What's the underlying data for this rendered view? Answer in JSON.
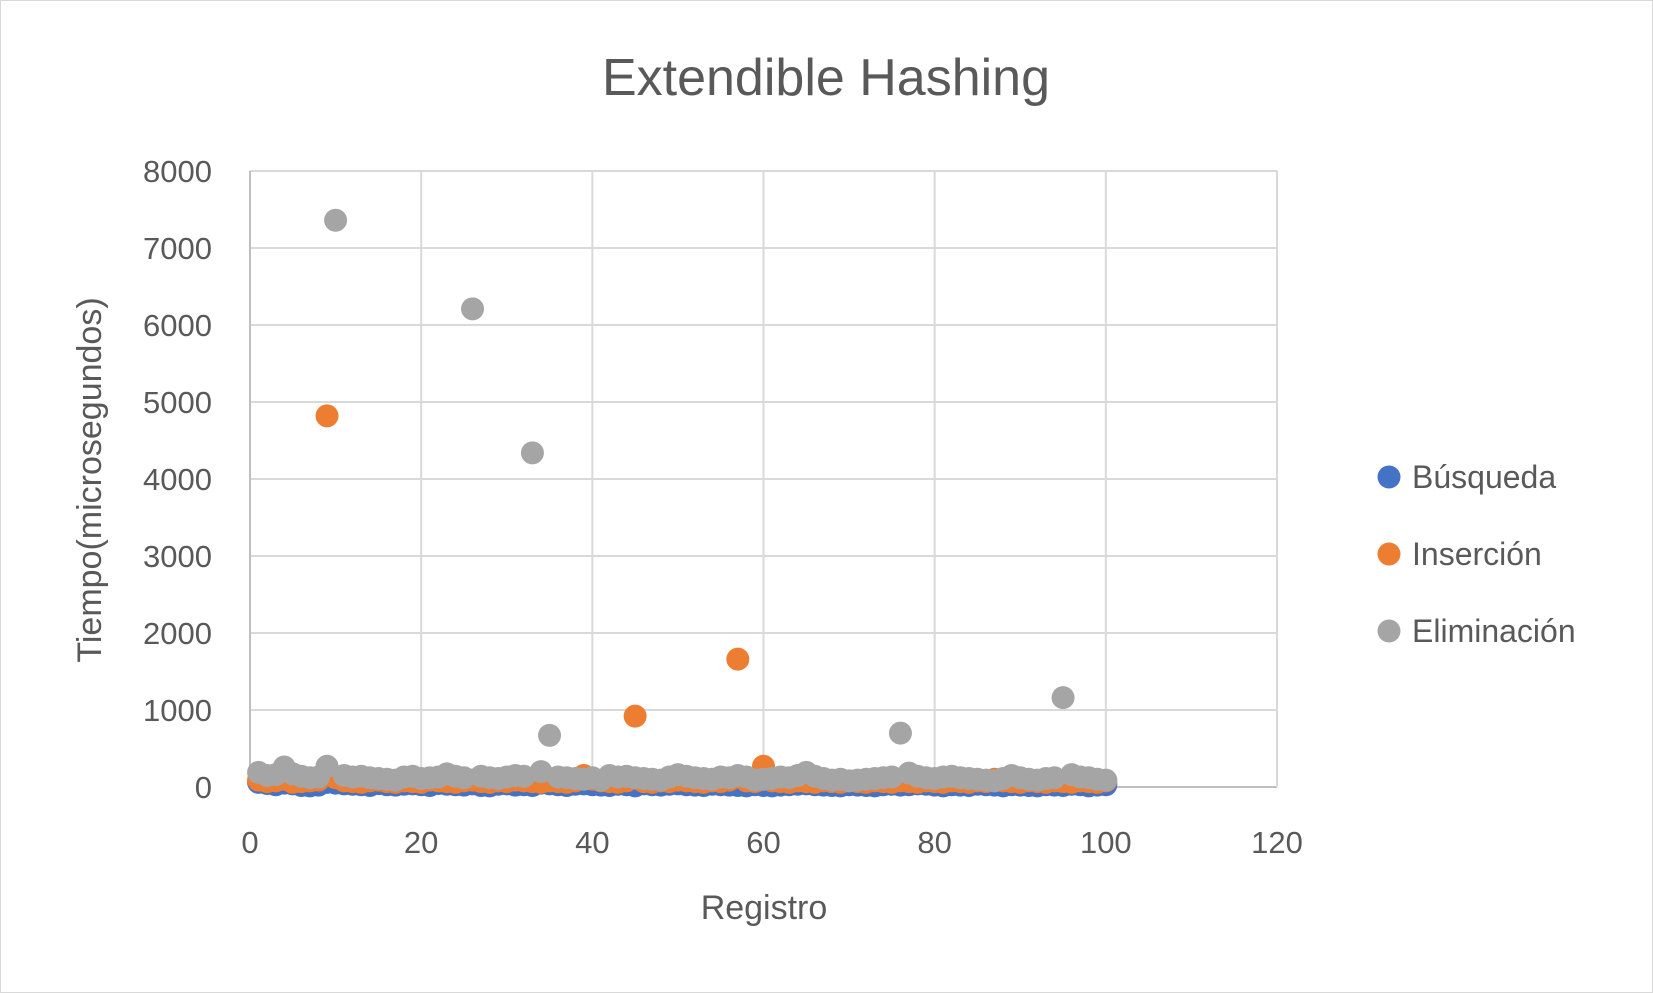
{
  "chart_data": {
    "type": "scatter",
    "title": "Extendible Hashing",
    "xlabel": "Registro",
    "ylabel": "Tiempo(microsegundos)",
    "xlim": [
      0,
      120
    ],
    "ylim": [
      0,
      8000
    ],
    "x_ticks": [
      0,
      20,
      40,
      60,
      80,
      100,
      120
    ],
    "y_ticks": [
      0,
      1000,
      2000,
      3000,
      4000,
      5000,
      6000,
      7000,
      8000
    ],
    "grid": true,
    "legend_position": "right",
    "series": [
      {
        "name": "Búsqueda",
        "color": "#4472c4",
        "points": [
          [
            1,
            60
          ],
          [
            2,
            45
          ],
          [
            3,
            30
          ],
          [
            4,
            50
          ],
          [
            5,
            40
          ],
          [
            6,
            20
          ],
          [
            7,
            15
          ],
          [
            8,
            25
          ],
          [
            9,
            60
          ],
          [
            10,
            50
          ],
          [
            11,
            40
          ],
          [
            12,
            35
          ],
          [
            13,
            30
          ],
          [
            14,
            20
          ],
          [
            15,
            45
          ],
          [
            16,
            30
          ],
          [
            17,
            25
          ],
          [
            18,
            35
          ],
          [
            19,
            40
          ],
          [
            20,
            30
          ],
          [
            21,
            20
          ],
          [
            22,
            45
          ],
          [
            23,
            35
          ],
          [
            24,
            30
          ],
          [
            25,
            25
          ],
          [
            26,
            40
          ],
          [
            27,
            20
          ],
          [
            28,
            15
          ],
          [
            29,
            35
          ],
          [
            30,
            40
          ],
          [
            31,
            25
          ],
          [
            32,
            30
          ],
          [
            33,
            20
          ],
          [
            34,
            50
          ],
          [
            35,
            40
          ],
          [
            36,
            30
          ],
          [
            37,
            20
          ],
          [
            38,
            35
          ],
          [
            39,
            40
          ],
          [
            40,
            30
          ],
          [
            41,
            25
          ],
          [
            42,
            20
          ],
          [
            43,
            35
          ],
          [
            44,
            30
          ],
          [
            45,
            15
          ],
          [
            46,
            40
          ],
          [
            47,
            30
          ],
          [
            48,
            25
          ],
          [
            49,
            35
          ],
          [
            50,
            40
          ],
          [
            51,
            30
          ],
          [
            52,
            25
          ],
          [
            53,
            20
          ],
          [
            54,
            35
          ],
          [
            55,
            30
          ],
          [
            56,
            25
          ],
          [
            57,
            20
          ],
          [
            58,
            15
          ],
          [
            59,
            30
          ],
          [
            60,
            20
          ],
          [
            61,
            15
          ],
          [
            62,
            25
          ],
          [
            63,
            30
          ],
          [
            64,
            35
          ],
          [
            65,
            40
          ],
          [
            66,
            30
          ],
          [
            67,
            25
          ],
          [
            68,
            20
          ],
          [
            69,
            15
          ],
          [
            70,
            30
          ],
          [
            71,
            25
          ],
          [
            72,
            20
          ],
          [
            73,
            15
          ],
          [
            74,
            30
          ],
          [
            75,
            35
          ],
          [
            76,
            25
          ],
          [
            77,
            30
          ],
          [
            78,
            40
          ],
          [
            79,
            35
          ],
          [
            80,
            25
          ],
          [
            81,
            15
          ],
          [
            82,
            30
          ],
          [
            83,
            25
          ],
          [
            84,
            20
          ],
          [
            85,
            35
          ],
          [
            86,
            30
          ],
          [
            87,
            25
          ],
          [
            88,
            15
          ],
          [
            89,
            30
          ],
          [
            90,
            25
          ],
          [
            91,
            20
          ],
          [
            92,
            15
          ],
          [
            93,
            30
          ],
          [
            94,
            25
          ],
          [
            95,
            20
          ],
          [
            96,
            35
          ],
          [
            97,
            30
          ],
          [
            98,
            15
          ],
          [
            99,
            25
          ],
          [
            100,
            30
          ]
        ]
      },
      {
        "name": "Inserción",
        "color": "#ed7d31",
        "points": [
          [
            1,
            90
          ],
          [
            2,
            70
          ],
          [
            3,
            80
          ],
          [
            4,
            100
          ],
          [
            5,
            60
          ],
          [
            6,
            70
          ],
          [
            7,
            80
          ],
          [
            8,
            90
          ],
          [
            9,
            4820
          ],
          [
            10,
            120
          ],
          [
            11,
            80
          ],
          [
            12,
            70
          ],
          [
            13,
            60
          ],
          [
            14,
            80
          ],
          [
            15,
            90
          ],
          [
            16,
            70
          ],
          [
            17,
            60
          ],
          [
            18,
            80
          ],
          [
            19,
            70
          ],
          [
            20,
            60
          ],
          [
            21,
            90
          ],
          [
            22,
            80
          ],
          [
            23,
            70
          ],
          [
            24,
            60
          ],
          [
            25,
            80
          ],
          [
            26,
            90
          ],
          [
            27,
            70
          ],
          [
            28,
            60
          ],
          [
            29,
            80
          ],
          [
            30,
            70
          ],
          [
            31,
            90
          ],
          [
            32,
            80
          ],
          [
            33,
            70
          ],
          [
            34,
            60
          ],
          [
            35,
            80
          ],
          [
            36,
            70
          ],
          [
            37,
            60
          ],
          [
            38,
            80
          ],
          [
            39,
            150
          ],
          [
            40,
            100
          ],
          [
            41,
            80
          ],
          [
            42,
            70
          ],
          [
            43,
            60
          ],
          [
            44,
            80
          ],
          [
            45,
            920
          ],
          [
            46,
            70
          ],
          [
            47,
            60
          ],
          [
            48,
            80
          ],
          [
            49,
            70
          ],
          [
            50,
            90
          ],
          [
            51,
            80
          ],
          [
            52,
            70
          ],
          [
            53,
            60
          ],
          [
            54,
            80
          ],
          [
            55,
            70
          ],
          [
            56,
            90
          ],
          [
            57,
            1660
          ],
          [
            58,
            80
          ],
          [
            59,
            70
          ],
          [
            60,
            270
          ],
          [
            61,
            80
          ],
          [
            62,
            70
          ],
          [
            63,
            60
          ],
          [
            64,
            80
          ],
          [
            65,
            70
          ],
          [
            66,
            60
          ],
          [
            67,
            80
          ],
          [
            68,
            70
          ],
          [
            69,
            60
          ],
          [
            70,
            80
          ],
          [
            71,
            70
          ],
          [
            72,
            60
          ],
          [
            73,
            80
          ],
          [
            74,
            70
          ],
          [
            75,
            60
          ],
          [
            76,
            80
          ],
          [
            77,
            70
          ],
          [
            78,
            60
          ],
          [
            79,
            80
          ],
          [
            80,
            70
          ],
          [
            81,
            60
          ],
          [
            82,
            80
          ],
          [
            83,
            70
          ],
          [
            84,
            60
          ],
          [
            85,
            80
          ],
          [
            86,
            70
          ],
          [
            87,
            100
          ],
          [
            88,
            80
          ],
          [
            89,
            70
          ],
          [
            90,
            60
          ],
          [
            91,
            80
          ],
          [
            92,
            70
          ],
          [
            93,
            60
          ],
          [
            94,
            80
          ],
          [
            95,
            70
          ],
          [
            96,
            60
          ],
          [
            97,
            80
          ],
          [
            98,
            70
          ],
          [
            99,
            60
          ],
          [
            100,
            80
          ]
        ]
      },
      {
        "name": "Eliminación",
        "color": "#a5a5a5",
        "points": [
          [
            1,
            190
          ],
          [
            2,
            150
          ],
          [
            3,
            160
          ],
          [
            4,
            260
          ],
          [
            5,
            170
          ],
          [
            6,
            140
          ],
          [
            7,
            120
          ],
          [
            8,
            130
          ],
          [
            9,
            270
          ],
          [
            10,
            7360
          ],
          [
            11,
            150
          ],
          [
            12,
            130
          ],
          [
            13,
            140
          ],
          [
            14,
            120
          ],
          [
            15,
            110
          ],
          [
            16,
            100
          ],
          [
            17,
            90
          ],
          [
            18,
            130
          ],
          [
            19,
            140
          ],
          [
            20,
            110
          ],
          [
            21,
            120
          ],
          [
            22,
            130
          ],
          [
            23,
            170
          ],
          [
            24,
            140
          ],
          [
            25,
            120
          ],
          [
            26,
            6210
          ],
          [
            27,
            140
          ],
          [
            28,
            120
          ],
          [
            29,
            110
          ],
          [
            30,
            130
          ],
          [
            31,
            150
          ],
          [
            32,
            140
          ],
          [
            33,
            4340
          ],
          [
            34,
            200
          ],
          [
            35,
            670
          ],
          [
            36,
            130
          ],
          [
            37,
            120
          ],
          [
            38,
            110
          ],
          [
            39,
            100
          ],
          [
            40,
            120
          ],
          [
            41,
            90
          ],
          [
            42,
            150
          ],
          [
            43,
            130
          ],
          [
            44,
            140
          ],
          [
            45,
            120
          ],
          [
            46,
            110
          ],
          [
            47,
            100
          ],
          [
            48,
            90
          ],
          [
            49,
            130
          ],
          [
            50,
            160
          ],
          [
            51,
            140
          ],
          [
            52,
            120
          ],
          [
            53,
            110
          ],
          [
            54,
            100
          ],
          [
            55,
            130
          ],
          [
            56,
            120
          ],
          [
            57,
            150
          ],
          [
            58,
            130
          ],
          [
            59,
            90
          ],
          [
            60,
            100
          ],
          [
            61,
            110
          ],
          [
            62,
            130
          ],
          [
            63,
            120
          ],
          [
            64,
            150
          ],
          [
            65,
            190
          ],
          [
            66,
            140
          ],
          [
            67,
            110
          ],
          [
            68,
            90
          ],
          [
            69,
            100
          ],
          [
            70,
            80
          ],
          [
            71,
            90
          ],
          [
            72,
            100
          ],
          [
            73,
            110
          ],
          [
            74,
            120
          ],
          [
            75,
            130
          ],
          [
            76,
            700
          ],
          [
            77,
            180
          ],
          [
            78,
            140
          ],
          [
            79,
            120
          ],
          [
            80,
            110
          ],
          [
            81,
            130
          ],
          [
            82,
            140
          ],
          [
            83,
            120
          ],
          [
            84,
            110
          ],
          [
            85,
            100
          ],
          [
            86,
            90
          ],
          [
            87,
            80
          ],
          [
            88,
            110
          ],
          [
            89,
            150
          ],
          [
            90,
            120
          ],
          [
            91,
            100
          ],
          [
            92,
            90
          ],
          [
            93,
            110
          ],
          [
            94,
            120
          ],
          [
            95,
            1160
          ],
          [
            96,
            160
          ],
          [
            97,
            130
          ],
          [
            98,
            120
          ],
          [
            99,
            100
          ],
          [
            100,
            90
          ]
        ]
      }
    ]
  }
}
